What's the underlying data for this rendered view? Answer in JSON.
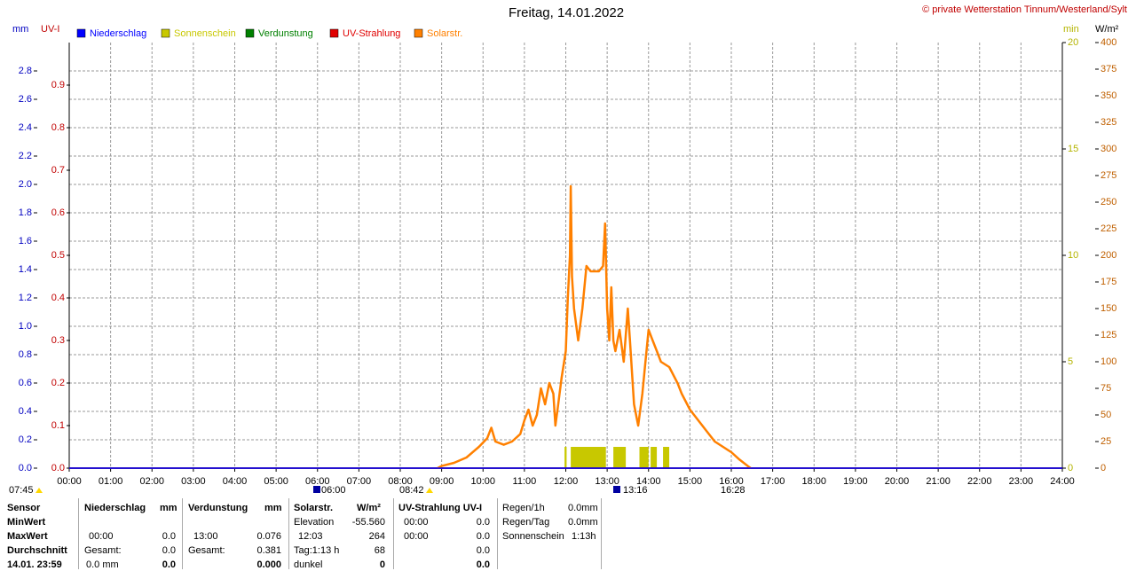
{
  "chart_data": {
    "type": "line",
    "title": "Freitag, 14.01.2022",
    "note": "© private Wetterstation Tinnum/Westerland/Sylt",
    "xlim": [
      0,
      24
    ],
    "xticks": [
      {
        "value": 0,
        "label": "00:00"
      },
      {
        "value": 1,
        "label": "01:00"
      },
      {
        "value": 2,
        "label": "02:00"
      },
      {
        "value": 3,
        "label": "03:00"
      },
      {
        "value": 4,
        "label": "04:00"
      },
      {
        "value": 5,
        "label": "05:00"
      },
      {
        "value": 6,
        "label": "06:00"
      },
      {
        "value": 7,
        "label": "07:00"
      },
      {
        "value": 8,
        "label": "08:00"
      },
      {
        "value": 9,
        "label": "09:00"
      },
      {
        "value": 10,
        "label": "10:00"
      },
      {
        "value": 11,
        "label": "11:00"
      },
      {
        "value": 12,
        "label": "12:00"
      },
      {
        "value": 13,
        "label": "13:00"
      },
      {
        "value": 14,
        "label": "14:00"
      },
      {
        "value": 15,
        "label": "15:00"
      },
      {
        "value": 16,
        "label": "16:00"
      },
      {
        "value": 17,
        "label": "17:00"
      },
      {
        "value": 18,
        "label": "18:00"
      },
      {
        "value": 19,
        "label": "19:00"
      },
      {
        "value": 20,
        "label": "20:00"
      },
      {
        "value": 21,
        "label": "21:00"
      },
      {
        "value": 22,
        "label": "22:00"
      },
      {
        "value": 23,
        "label": "23:00"
      },
      {
        "value": 24,
        "label": "24:00"
      }
    ],
    "ylabel": "mm",
    "ylim": [
      0,
      3
    ],
    "ycolor": "#0000c0",
    "yticks": [
      {
        "value": 0,
        "label": "0.0"
      },
      0.2,
      0.4,
      0.6,
      0.8,
      {
        "value": 1,
        "label": "1.0"
      },
      1.2,
      1.4,
      1.6,
      1.8,
      {
        "value": 2,
        "label": "2.0"
      },
      2.2,
      2.4,
      2.6,
      2.8
    ],
    "y2label": "UV-I",
    "y2lim": [
      0,
      1
    ],
    "y2color": "#c00000",
    "y2ticks": [
      {
        "value": 0,
        "label": "0.0"
      },
      0.1,
      0.2,
      0.3,
      0.4,
      0.5,
      0.6,
      0.7,
      0.8,
      0.9
    ],
    "y3label": "min",
    "y3lim": [
      0,
      20
    ],
    "y3color": "#b4b400",
    "y3ticks": [
      0,
      5,
      10,
      15,
      20
    ],
    "y4label": "W/m²",
    "y4lim": [
      0,
      400
    ],
    "y4color": "#c06000",
    "y4ticks": [
      0,
      25,
      50,
      75,
      100,
      125,
      150,
      175,
      200,
      225,
      250,
      275,
      300,
      325,
      350,
      375,
      400
    ],
    "grid": true,
    "series": [
      {
        "name": "Niederschlag",
        "color": "#0000ff",
        "axis": "y",
        "x": [
          0,
          24
        ],
        "values": [
          0,
          0
        ]
      },
      {
        "name": "Sonnenschein",
        "color": "#c8c800",
        "axis": "y3",
        "kind": "bar",
        "x": [
          11.97,
          12.12,
          13.15,
          13.78,
          14.05,
          14.35
        ],
        "x_end": [
          12.02,
          12.97,
          13.45,
          14.0,
          14.2,
          14.5
        ],
        "values": [
          1,
          1,
          1,
          1,
          1,
          1
        ]
      },
      {
        "name": "Verdunstung",
        "color": "#008000",
        "axis": "y",
        "x": [
          0,
          24
        ],
        "values": [
          0,
          0
        ]
      },
      {
        "name": "UV-Strahlung",
        "color": "#e00000",
        "axis": "y2",
        "x": [
          0,
          24
        ],
        "values": [
          0,
          0
        ]
      },
      {
        "name": "Solarstr.",
        "color": "#ff8000",
        "axis": "y4",
        "x": [
          8.9,
          9.0,
          9.3,
          9.6,
          9.9,
          10.1,
          10.2,
          10.3,
          10.5,
          10.7,
          10.9,
          11.0,
          11.1,
          11.2,
          11.3,
          11.4,
          11.5,
          11.6,
          11.7,
          11.75,
          11.8,
          11.9,
          12.0,
          12.05,
          12.1,
          12.12,
          12.15,
          12.2,
          12.3,
          12.4,
          12.5,
          12.6,
          12.7,
          12.8,
          12.9,
          12.95,
          13.0,
          13.05,
          13.1,
          13.15,
          13.2,
          13.3,
          13.4,
          13.5,
          13.55,
          13.65,
          13.75,
          13.85,
          13.9,
          14.0,
          14.1,
          14.2,
          14.3,
          14.5,
          14.7,
          14.8,
          15.0,
          15.2,
          15.4,
          15.6,
          15.8,
          16.0,
          16.2,
          16.4,
          16.47
        ],
        "values": [
          0,
          2,
          5,
          10,
          20,
          28,
          38,
          25,
          22,
          25,
          32,
          45,
          55,
          40,
          50,
          75,
          60,
          80,
          70,
          40,
          55,
          85,
          110,
          160,
          200,
          265,
          180,
          150,
          120,
          150,
          190,
          185,
          185,
          185,
          190,
          230,
          150,
          120,
          170,
          120,
          110,
          130,
          100,
          150,
          120,
          60,
          40,
          70,
          90,
          130,
          120,
          110,
          100,
          95,
          80,
          70,
          55,
          45,
          35,
          25,
          20,
          15,
          8,
          2,
          0
        ]
      }
    ],
    "sun_marks": [
      "07:45",
      "06:00",
      "08:42",
      "13:16",
      "16:28"
    ]
  },
  "table": {
    "labels": [
      "Sensor",
      "MinWert",
      "MaxWert",
      "Durchschnitt",
      "14.01. 23:59"
    ],
    "niederschlag": {
      "header": "Niederschlag",
      "unit": "mm",
      "max": [
        "00:00",
        "0.0"
      ],
      "total": [
        "Gesamt:",
        "0.0"
      ],
      "last": [
        "0.0 mm",
        "0.0"
      ]
    },
    "verdunstung": {
      "header": "Verdunstung",
      "unit": "mm",
      "max": [
        "13:00",
        "0.076"
      ],
      "total": [
        "Gesamt:",
        "0.381"
      ],
      "last": [
        "0.000"
      ]
    },
    "solar": {
      "header": "Solarstr.",
      "unit": "W/m²",
      "min": [
        "Elevation",
        "-55.560"
      ],
      "max": [
        "12:03",
        "264"
      ],
      "avg": [
        "Tag:1:13 h",
        "68"
      ],
      "last": [
        "dunkel",
        "0"
      ]
    },
    "uv": {
      "header": "UV-Strahlung UV-I",
      "min": [
        "00:00",
        "0.0"
      ],
      "max": [
        "00:00",
        "0.0"
      ],
      "avg": [
        "0.0"
      ],
      "last": [
        "0.0"
      ]
    },
    "regen": [
      [
        "Regen/1h",
        "0.0mm"
      ],
      [
        "Regen/Tag",
        "0.0mm"
      ],
      [
        "Sonnenschein",
        "1:13h"
      ]
    ]
  }
}
